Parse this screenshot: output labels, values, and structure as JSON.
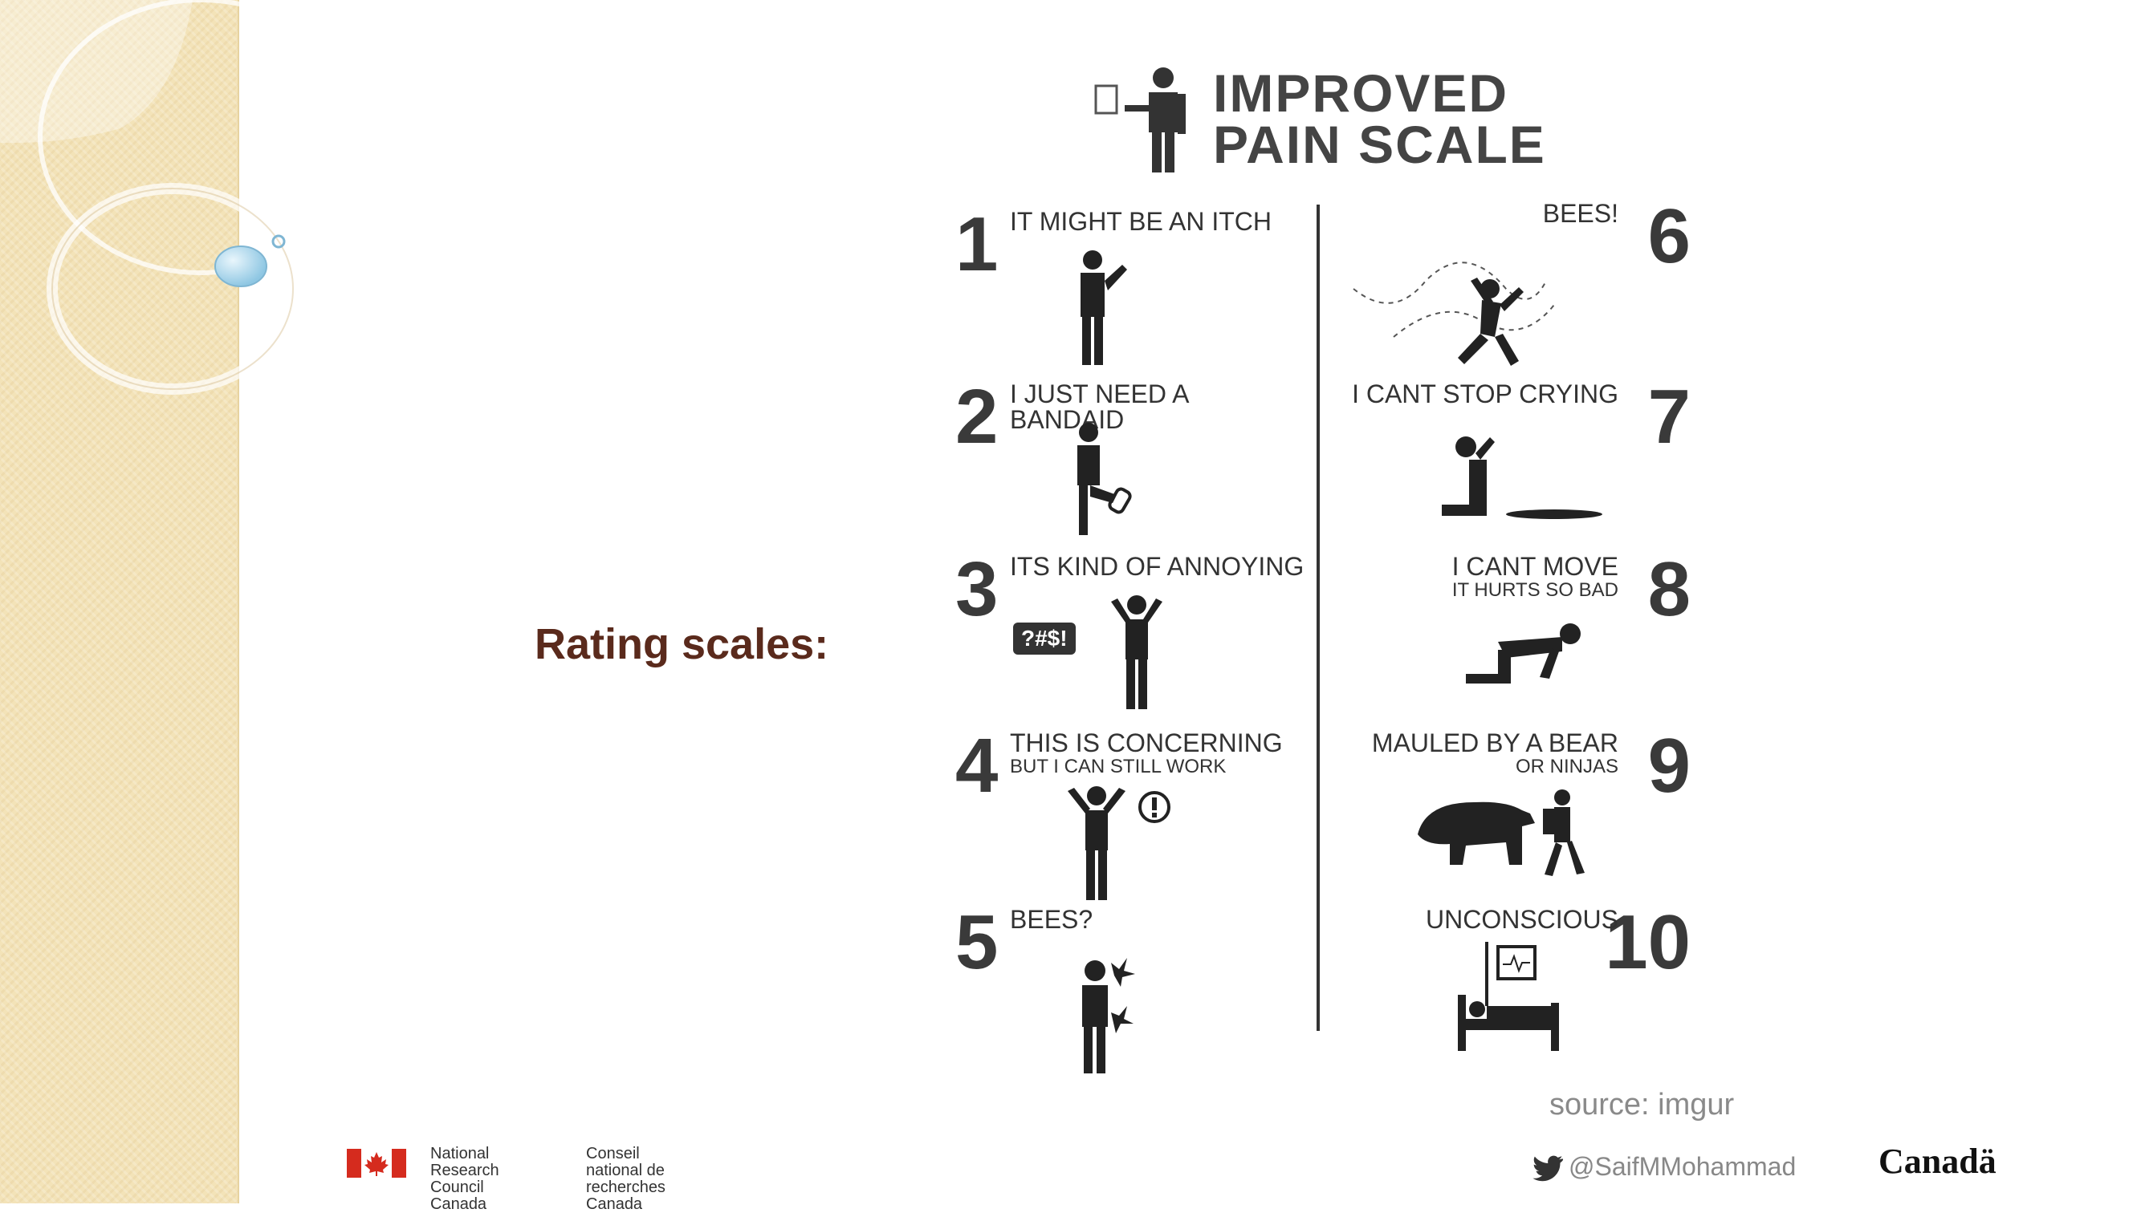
{
  "slide": {
    "title": "Rating scales:",
    "source": "source: imgur",
    "twitter_handle": "@SaifMMohammad",
    "canada_wordmark": "Canadä",
    "nrc_en_line1": "National Research",
    "nrc_en_line2": "Council Canada",
    "nrc_fr_line1": "Conseil national de",
    "nrc_fr_line2": "recherches Canada"
  },
  "poster": {
    "title_line1": "IMPROVED",
    "title_line2": "PAIN SCALE",
    "items": [
      {
        "num": "1",
        "label": "IT MIGHT BE AN ITCH",
        "sub": ""
      },
      {
        "num": "2",
        "label": "I JUST NEED A BANDAID",
        "sub": ""
      },
      {
        "num": "3",
        "label": "ITS KIND OF ANNOYING",
        "sub": "",
        "speech": "?#$!"
      },
      {
        "num": "4",
        "label": "THIS IS CONCERNING",
        "sub": "BUT I CAN STILL WORK"
      },
      {
        "num": "5",
        "label": "BEES?",
        "sub": ""
      },
      {
        "num": "6",
        "label": "BEES!",
        "sub": ""
      },
      {
        "num": "7",
        "label": "I CANT STOP CRYING",
        "sub": ""
      },
      {
        "num": "8",
        "label": "I CANT MOVE",
        "sub": "IT HURTS SO BAD"
      },
      {
        "num": "9",
        "label": "MAULED BY A BEAR",
        "sub": "OR NINJAS"
      },
      {
        "num": "10",
        "label": "UNCONSCIOUS",
        "sub": ""
      }
    ]
  },
  "colors": {
    "title": "#5a2a1c",
    "sidebar": "#f3e3b8",
    "nrc_flag_red": "#d52b1e"
  }
}
